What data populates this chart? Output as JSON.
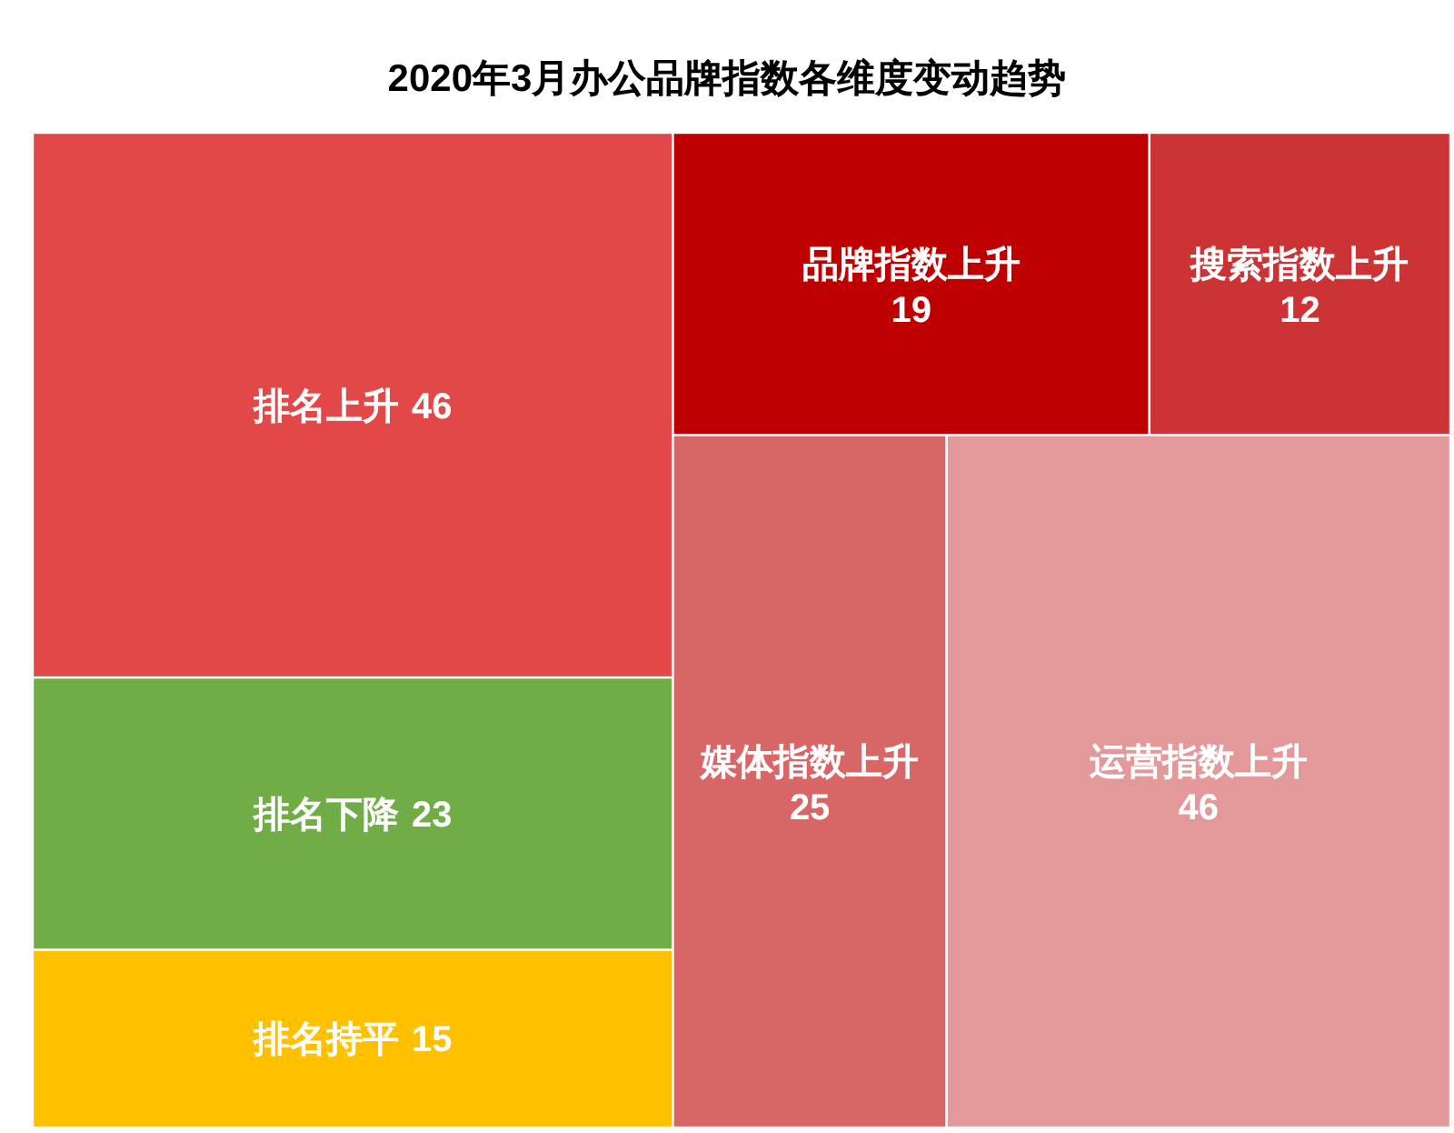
{
  "chart_data": {
    "type": "other",
    "title": "2020年3月办公品牌指数各维度变动趋势",
    "categories": [
      "排名上升",
      "排名下降",
      "排名持平",
      "品牌指数上升",
      "搜索指数上升",
      "媒体指数上升",
      "运营指数上升"
    ],
    "series": [
      {
        "values": [
          46,
          23,
          15,
          null,
          null,
          null,
          null
        ],
        "colors": [
          "#e34848",
          "#70ad47",
          "#ffc000",
          null,
          null,
          null,
          null
        ]
      },
      {
        "values": [
          null,
          null,
          null,
          19,
          12,
          25,
          46
        ],
        "colors": [
          null,
          null,
          null,
          "#bf0000",
          "#cb3334",
          "#d96666",
          "#e39999"
        ]
      }
    ],
    "data_labels": true
  }
}
